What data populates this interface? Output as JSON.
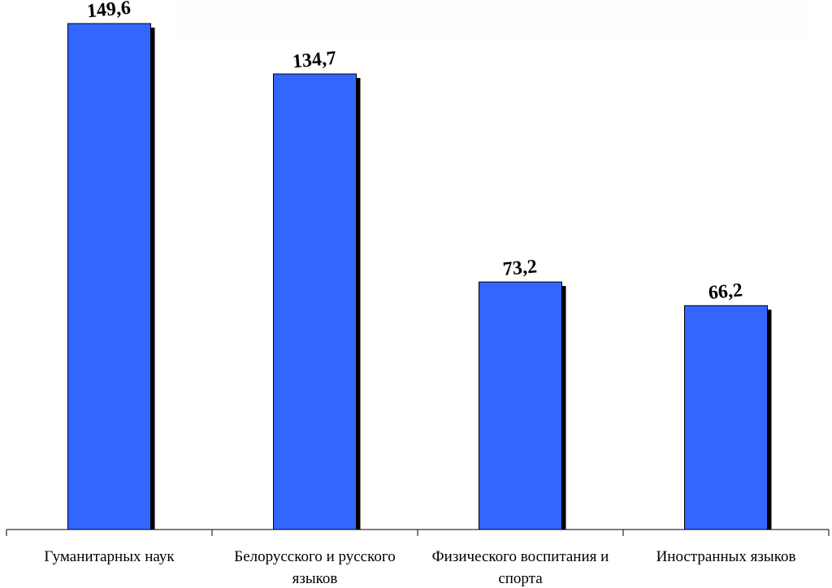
{
  "chart_data": {
    "type": "bar",
    "categories": [
      [
        "Гуманитарных наук"
      ],
      [
        "Белорусского и русского",
        "языков"
      ],
      [
        "Физического воспитания и",
        "спорта"
      ],
      [
        "Иностранных языков"
      ]
    ],
    "values": [
      149.6,
      134.7,
      73.2,
      66.2
    ],
    "value_labels": [
      "149,6",
      "134,7",
      "73,2",
      "66,2"
    ],
    "title": "",
    "xlabel": "",
    "ylabel": "",
    "ylim": [
      0,
      150
    ],
    "grid": false,
    "legend": "none",
    "bar_color": "#3366ff",
    "shadow_color": "#000000"
  }
}
